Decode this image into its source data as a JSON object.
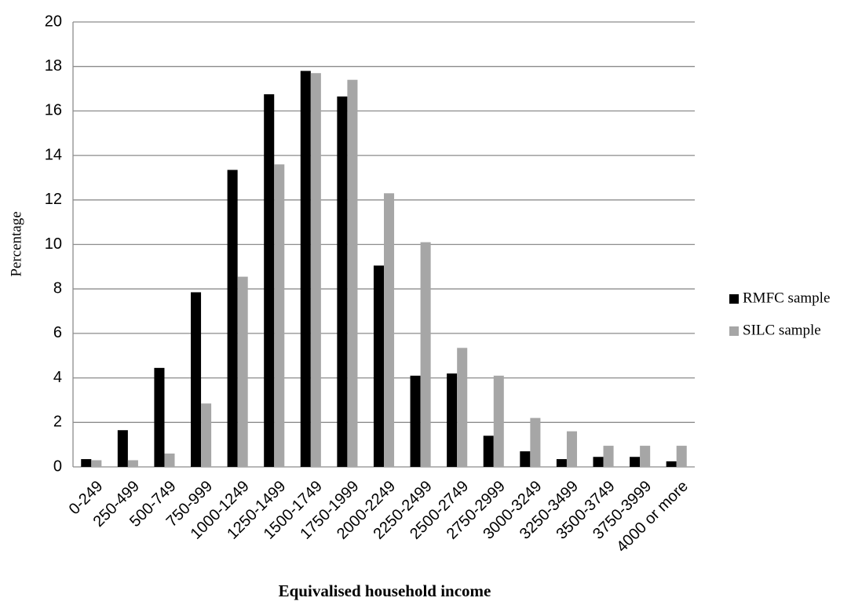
{
  "chart_data": {
    "type": "bar",
    "x_label": "Equivalised household income",
    "y_label": "Percentage",
    "categories": [
      "0-249",
      "250-499",
      "500-749",
      "750-999",
      "1000-1249",
      "1250-1499",
      "1500-1749",
      "1750-1999",
      "2000-2249",
      "2250-2499",
      "2500-2749",
      "2750-2999",
      "3000-3249",
      "3250-3499",
      "3500-3749",
      "3750-3999",
      "4000 or more"
    ],
    "series": [
      {
        "name": "RMFC sample",
        "color": "#000000",
        "values": [
          0.35,
          1.65,
          4.45,
          7.85,
          13.35,
          16.75,
          17.8,
          16.65,
          9.05,
          4.1,
          4.2,
          1.4,
          0.7,
          0.35,
          0.45,
          0.45,
          0.25
        ]
      },
      {
        "name": "SILC sample",
        "color": "#a6a6a6",
        "values": [
          0.3,
          0.3,
          0.6,
          2.85,
          8.55,
          13.6,
          17.7,
          17.4,
          12.3,
          10.1,
          5.35,
          4.1,
          2.2,
          1.6,
          0.95,
          0.95,
          0.95
        ]
      }
    ],
    "ylim": [
      0,
      20
    ],
    "yticks": [
      0,
      2,
      4,
      6,
      8,
      10,
      12,
      14,
      16,
      18,
      20
    ],
    "grid": true,
    "legend": "right"
  }
}
